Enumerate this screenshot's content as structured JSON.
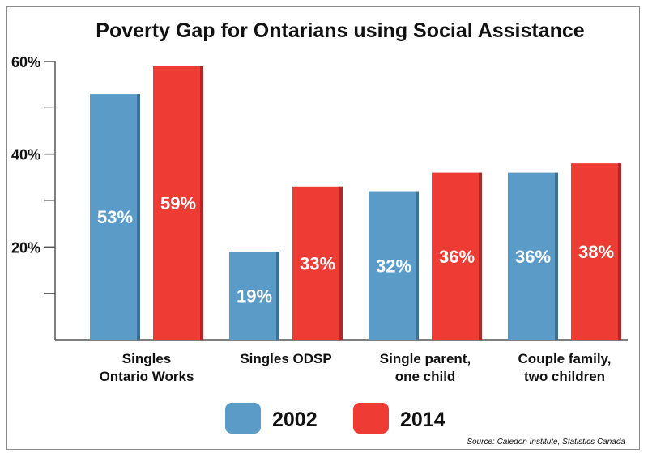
{
  "chart_data": {
    "type": "bar",
    "title": "Poverty Gap for Ontarians using Social Assistance",
    "categories": [
      [
        "Singles",
        "Ontario Works"
      ],
      [
        "Singles ODSP"
      ],
      [
        "Single parent,",
        "one child"
      ],
      [
        "Couple family,",
        "two children"
      ]
    ],
    "series": [
      {
        "name": "2002",
        "color": "#5b9bc8",
        "values": [
          53,
          19,
          32,
          36
        ],
        "labels": [
          "53%",
          "19%",
          "32%",
          "36%"
        ]
      },
      {
        "name": "2014",
        "color": "#ee3b34",
        "values": [
          59,
          33,
          36,
          38
        ],
        "labels": [
          "59%",
          "33%",
          "36%",
          "38%"
        ]
      }
    ],
    "ylim": [
      0,
      60
    ],
    "y_ticks": [
      {
        "value": 60,
        "label": "60%"
      },
      {
        "value": 40,
        "label": "40%"
      },
      {
        "value": 20,
        "label": "20%"
      }
    ],
    "y_minor_ticks": [
      10,
      30,
      50
    ],
    "grid": false,
    "legend_placement": "bottom-center",
    "source": "Source: Caledon Institute, Statistics Canada"
  }
}
